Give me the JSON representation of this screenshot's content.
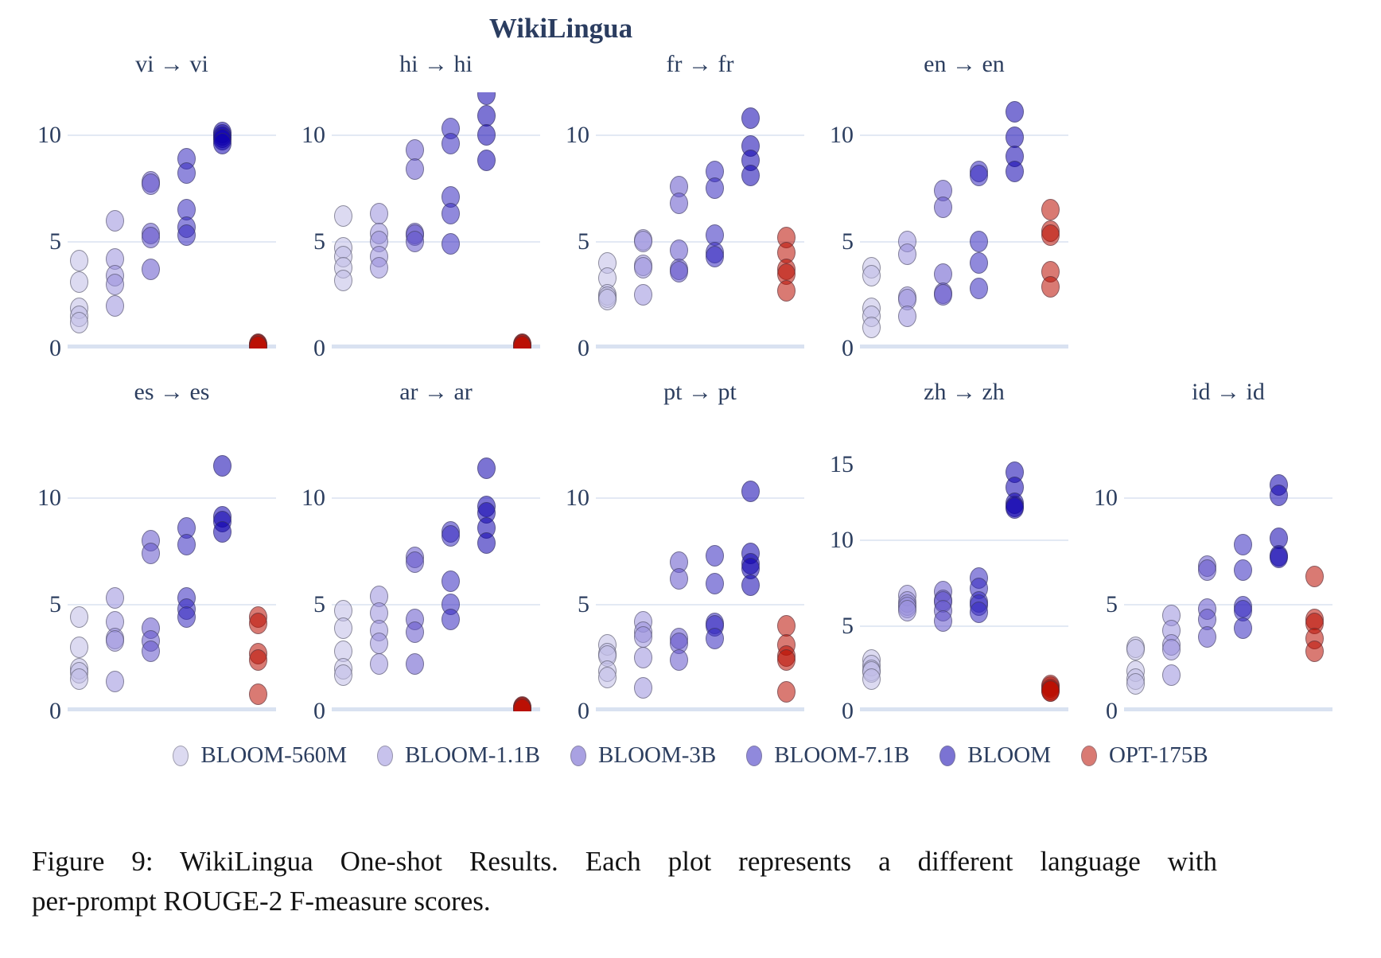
{
  "title": "WikiLingua",
  "caption": {
    "line1": "Figure 9:  WikiLingua One-shot Results.  Each plot represents a different language with",
    "line2": "per-prompt ROUGE-2 F-measure scores."
  },
  "models": [
    {
      "name": "BLOOM-560M",
      "fill": "rgba(191,188,230,0.55)"
    },
    {
      "name": "BLOOM-1.1B",
      "fill": "rgba(153,144,220,0.55)"
    },
    {
      "name": "BLOOM-3B",
      "fill": "rgba(99,84,202,0.55)"
    },
    {
      "name": "BLOOM-7.1B",
      "fill": "rgba(53,40,191,0.55)"
    },
    {
      "name": "BLOOM",
      "fill": "rgba(15,0,175,0.55)"
    },
    {
      "name": "OPT-175B",
      "fill": "rgba(186,13,0,0.55)"
    }
  ],
  "style_colors": {
    "title_text": "#2b3d60",
    "axis_text": "#2c3e5f",
    "gridline": "#e3e9f4",
    "baseline": "#d9e2f1",
    "caption_text": "#131313"
  },
  "chart_data": [
    {
      "type": "scatter",
      "title": "vi → vi",
      "xlabel": "",
      "ylabel": "",
      "ylim": [
        0,
        12
      ],
      "yticks": [
        0,
        5,
        10
      ],
      "grid": true,
      "series": [
        {
          "name": "BLOOM-560M",
          "values": [
            4.1,
            3.1,
            1.9,
            1.5,
            1.2
          ]
        },
        {
          "name": "BLOOM-1.1B",
          "values": [
            6.0,
            4.2,
            3.4,
            3.0,
            2.0
          ]
        },
        {
          "name": "BLOOM-3B",
          "values": [
            7.8,
            7.7,
            5.4,
            5.2,
            3.7
          ]
        },
        {
          "name": "BLOOM-7.1B",
          "values": [
            8.9,
            8.2,
            6.5,
            5.7,
            5.3
          ]
        },
        {
          "name": "BLOOM",
          "values": [
            10.1,
            10.0,
            9.9,
            9.8,
            9.6
          ]
        },
        {
          "name": "OPT-175B",
          "values": [
            0.2,
            0.15,
            0.15,
            0.1,
            0.1
          ]
        }
      ]
    },
    {
      "type": "scatter",
      "title": "hi → hi",
      "xlabel": "",
      "ylabel": "",
      "ylim": [
        0,
        12
      ],
      "yticks": [
        0,
        5,
        10
      ],
      "grid": true,
      "series": [
        {
          "name": "BLOOM-560M",
          "values": [
            6.2,
            4.7,
            4.3,
            3.8,
            3.2
          ]
        },
        {
          "name": "BLOOM-1.1B",
          "values": [
            6.3,
            5.4,
            5.0,
            4.3,
            3.8
          ]
        },
        {
          "name": "BLOOM-3B",
          "values": [
            9.3,
            8.4,
            5.4,
            5.3,
            5.0
          ]
        },
        {
          "name": "BLOOM-7.1B",
          "values": [
            10.3,
            9.6,
            7.1,
            6.3,
            4.9
          ]
        },
        {
          "name": "BLOOM",
          "values": [
            11.9,
            10.9,
            10.0,
            8.8
          ]
        },
        {
          "name": "OPT-175B",
          "values": [
            0.2,
            0.15,
            0.15,
            0.1,
            0.1
          ]
        }
      ]
    },
    {
      "type": "scatter",
      "title": "fr → fr",
      "xlabel": "",
      "ylabel": "",
      "ylim": [
        0,
        12
      ],
      "yticks": [
        0,
        5,
        10
      ],
      "grid": true,
      "series": [
        {
          "name": "BLOOM-560M",
          "values": [
            4.0,
            3.3,
            2.5,
            2.4,
            2.3
          ]
        },
        {
          "name": "BLOOM-1.1B",
          "values": [
            5.1,
            5.0,
            3.9,
            3.8,
            2.5
          ]
        },
        {
          "name": "BLOOM-3B",
          "values": [
            7.6,
            6.8,
            4.6,
            3.7,
            3.6
          ]
        },
        {
          "name": "BLOOM-7.1B",
          "values": [
            8.3,
            7.5,
            5.3,
            4.5,
            4.3
          ]
        },
        {
          "name": "BLOOM",
          "values": [
            10.8,
            9.5,
            8.8,
            8.1
          ]
        },
        {
          "name": "OPT-175B",
          "values": [
            5.2,
            4.5,
            3.7,
            3.5,
            2.7
          ]
        }
      ]
    },
    {
      "type": "scatter",
      "title": "en → en",
      "xlabel": "",
      "ylabel": "",
      "ylim": [
        0,
        12
      ],
      "yticks": [
        0,
        5,
        10
      ],
      "grid": true,
      "series": [
        {
          "name": "BLOOM-560M",
          "values": [
            3.8,
            3.4,
            1.9,
            1.5,
            1.0
          ]
        },
        {
          "name": "BLOOM-1.1B",
          "values": [
            5.0,
            4.4,
            2.4,
            2.3,
            1.5
          ]
        },
        {
          "name": "BLOOM-3B",
          "values": [
            7.4,
            6.6,
            3.5,
            2.6,
            2.5
          ]
        },
        {
          "name": "BLOOM-7.1B",
          "values": [
            8.3,
            8.1,
            5.0,
            4.0,
            2.8
          ]
        },
        {
          "name": "BLOOM",
          "values": [
            11.1,
            9.9,
            9.0,
            8.3
          ]
        },
        {
          "name": "OPT-175B",
          "values": [
            6.5,
            5.5,
            5.3,
            3.6,
            2.9
          ]
        }
      ]
    },
    {
      "type": "scatter",
      "title": "es → es",
      "xlabel": "",
      "ylabel": "",
      "ylim": [
        0,
        12
      ],
      "yticks": [
        0,
        5,
        10
      ],
      "grid": true,
      "series": [
        {
          "name": "BLOOM-560M",
          "values": [
            4.4,
            3.0,
            2.0,
            1.8,
            1.5
          ]
        },
        {
          "name": "BLOOM-1.1B",
          "values": [
            5.3,
            4.2,
            3.4,
            3.3,
            1.4
          ]
        },
        {
          "name": "BLOOM-3B",
          "values": [
            8.0,
            7.4,
            3.9,
            3.3,
            2.8
          ]
        },
        {
          "name": "BLOOM-7.1B",
          "values": [
            8.6,
            7.8,
            5.3,
            4.8,
            4.4
          ]
        },
        {
          "name": "BLOOM",
          "values": [
            11.5,
            9.1,
            8.9,
            8.4
          ]
        },
        {
          "name": "OPT-175B",
          "values": [
            4.4,
            4.1,
            2.7,
            2.4,
            0.8
          ]
        }
      ]
    },
    {
      "type": "scatter",
      "title": "ar → ar",
      "xlabel": "",
      "ylabel": "",
      "ylim": [
        0,
        12
      ],
      "yticks": [
        0,
        5,
        10
      ],
      "grid": true,
      "series": [
        {
          "name": "BLOOM-560M",
          "values": [
            4.7,
            3.9,
            2.8,
            2.0,
            1.7
          ]
        },
        {
          "name": "BLOOM-1.1B",
          "values": [
            5.4,
            4.6,
            3.8,
            3.2,
            2.2
          ]
        },
        {
          "name": "BLOOM-3B",
          "values": [
            7.2,
            7.0,
            4.3,
            3.7,
            2.2
          ]
        },
        {
          "name": "BLOOM-7.1B",
          "values": [
            8.4,
            8.2,
            6.1,
            5.0,
            4.3
          ]
        },
        {
          "name": "BLOOM",
          "values": [
            11.4,
            9.6,
            9.3,
            8.6,
            7.9
          ]
        },
        {
          "name": "OPT-175B",
          "values": [
            0.2,
            0.15,
            0.15,
            0.1,
            0.1
          ]
        }
      ]
    },
    {
      "type": "scatter",
      "title": "pt → pt",
      "xlabel": "",
      "ylabel": "",
      "ylim": [
        0,
        12
      ],
      "yticks": [
        0,
        5,
        10
      ],
      "grid": true,
      "series": [
        {
          "name": "BLOOM-560M",
          "values": [
            3.1,
            2.7,
            2.6,
            1.9,
            1.6
          ]
        },
        {
          "name": "BLOOM-1.1B",
          "values": [
            4.2,
            3.7,
            3.5,
            2.5,
            1.1
          ]
        },
        {
          "name": "BLOOM-3B",
          "values": [
            7.0,
            6.2,
            3.4,
            3.2,
            2.4
          ]
        },
        {
          "name": "BLOOM-7.1B",
          "values": [
            7.3,
            6.0,
            4.1,
            4.0,
            3.4
          ]
        },
        {
          "name": "BLOOM",
          "values": [
            10.3,
            7.4,
            6.9,
            6.7,
            5.9
          ]
        },
        {
          "name": "OPT-175B",
          "values": [
            4.0,
            3.1,
            2.6,
            2.4,
            0.9
          ]
        }
      ]
    },
    {
      "type": "scatter",
      "title": "zh → zh",
      "xlabel": "",
      "ylabel": "",
      "ylim": [
        0,
        15
      ],
      "yticks": [
        0,
        5,
        10,
        15
      ],
      "grid": true,
      "series": [
        {
          "name": "BLOOM-560M",
          "values": [
            3.0,
            2.7,
            2.4,
            2.3,
            1.9
          ]
        },
        {
          "name": "BLOOM-1.1B",
          "values": [
            6.8,
            6.4,
            6.2,
            6.1,
            5.9
          ]
        },
        {
          "name": "BLOOM-3B",
          "values": [
            7.0,
            6.5,
            6.4,
            5.9,
            5.3
          ]
        },
        {
          "name": "BLOOM-7.1B",
          "values": [
            7.8,
            7.2,
            6.4,
            6.2,
            5.8
          ]
        },
        {
          "name": "BLOOM",
          "values": [
            14.0,
            13.1,
            12.2,
            12.0,
            11.9
          ]
        },
        {
          "name": "OPT-175B",
          "values": [
            1.5,
            1.4,
            1.3,
            1.2,
            1.2
          ]
        }
      ]
    },
    {
      "type": "scatter",
      "title": "id → id",
      "xlabel": "",
      "ylabel": "",
      "ylim": [
        0,
        12
      ],
      "yticks": [
        0,
        5,
        10
      ],
      "grid": true,
      "series": [
        {
          "name": "BLOOM-560M",
          "values": [
            3.0,
            2.9,
            1.9,
            1.5,
            1.3
          ]
        },
        {
          "name": "BLOOM-1.1B",
          "values": [
            4.5,
            3.8,
            3.1,
            2.9,
            1.7
          ]
        },
        {
          "name": "BLOOM-3B",
          "values": [
            6.8,
            6.6,
            4.8,
            4.3,
            3.5
          ]
        },
        {
          "name": "BLOOM-7.1B",
          "values": [
            7.8,
            6.6,
            4.9,
            4.7,
            3.9
          ]
        },
        {
          "name": "BLOOM",
          "values": [
            10.6,
            10.1,
            8.1,
            7.3,
            7.2
          ]
        },
        {
          "name": "OPT-175B",
          "values": [
            6.3,
            4.3,
            4.1,
            3.4,
            2.8
          ]
        }
      ]
    }
  ]
}
